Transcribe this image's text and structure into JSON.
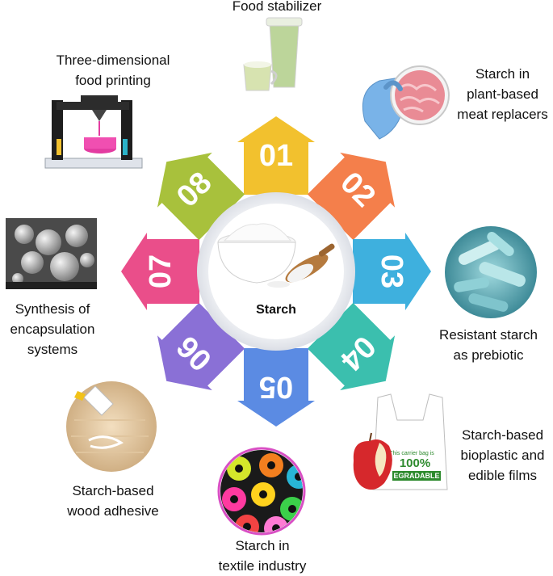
{
  "center": {
    "label": "Starch"
  },
  "segments": [
    {
      "number": "01",
      "color": "#f2c12e",
      "label_lines": [
        "Food stabilizer"
      ]
    },
    {
      "number": "02",
      "color": "#f47f4b",
      "label_lines": [
        "Starch in",
        "plant-based",
        "meat replacers"
      ]
    },
    {
      "number": "03",
      "color": "#3eb0de",
      "label_lines": [
        "Resistant starch",
        "as prebiotic"
      ]
    },
    {
      "number": "04",
      "color": "#3bbfae",
      "label_lines": [
        "Starch-based",
        "bioplastic and",
        "edible films"
      ]
    },
    {
      "number": "05",
      "color": "#5b8be3",
      "label_lines": [
        "Starch in",
        "textile industry"
      ]
    },
    {
      "number": "06",
      "color": "#8a70d6",
      "label_lines": [
        "Starch-based",
        "wood adhesive"
      ]
    },
    {
      "number": "07",
      "color": "#ea4e8a",
      "label_lines": [
        "Synthesis of",
        "encapsulation",
        "systems"
      ]
    },
    {
      "number": "08",
      "color": "#a8c13c",
      "label_lines": [
        "Three-dimensional",
        "food printing"
      ]
    }
  ],
  "bag_print": {
    "small_text": "This carrier bag is",
    "big_text": "100%",
    "band_text": "EGRADABLE"
  },
  "icons": [
    "starch-bowl-icon",
    "green-drink-icon",
    "gloved-hand-meat-icon",
    "bacteria-icon",
    "apple-bag-icon",
    "thread-spools-icon",
    "glue-bottle-icon",
    "microscopy-spheres-icon",
    "3d-printer-icon"
  ]
}
